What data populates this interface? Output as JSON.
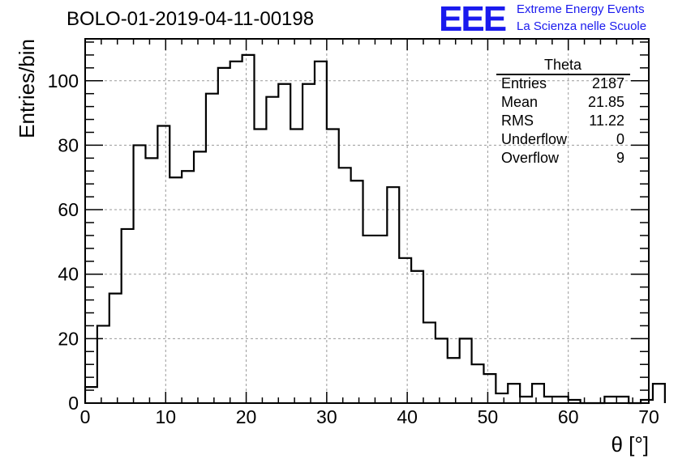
{
  "header": {
    "title": "BOLO-01-2019-04-11-00198",
    "logo_text": "EEE",
    "logo_line1": "Extreme Energy Events",
    "logo_line2": "La Scienza nelle Scuole",
    "logo_color": "#1a1aee"
  },
  "stats": {
    "title": "Theta",
    "rows": [
      {
        "key": "Entries",
        "value": "2187"
      },
      {
        "key": "Mean",
        "value": "21.85"
      },
      {
        "key": "RMS",
        "value": "11.22"
      },
      {
        "key": "Underflow",
        "value": "0"
      },
      {
        "key": "Overflow",
        "value": "9"
      }
    ]
  },
  "chart_data": {
    "type": "histogram",
    "title": "BOLO-01-2019-04-11-00198",
    "xlabel": "θ [°]",
    "ylabel": "Entries/bin",
    "xlim": [
      0,
      70
    ],
    "ylim": [
      0,
      113
    ],
    "xticks": [
      0,
      10,
      20,
      30,
      40,
      50,
      60,
      70
    ],
    "yticks": [
      0,
      20,
      40,
      60,
      80,
      100
    ],
    "grid": true,
    "bin_width": 1.5,
    "bin_start": 0,
    "values": [
      5,
      24,
      34,
      54,
      80,
      76,
      86,
      70,
      72,
      78,
      96,
      104,
      106,
      108,
      85,
      95,
      99,
      85,
      99,
      106,
      85,
      73,
      69,
      52,
      52,
      67,
      45,
      41,
      25,
      20,
      14,
      20,
      12,
      9,
      3,
      6,
      2,
      6,
      2,
      2,
      1,
      0,
      0,
      2,
      2,
      0,
      1,
      6
    ],
    "line_color": "#000000"
  }
}
